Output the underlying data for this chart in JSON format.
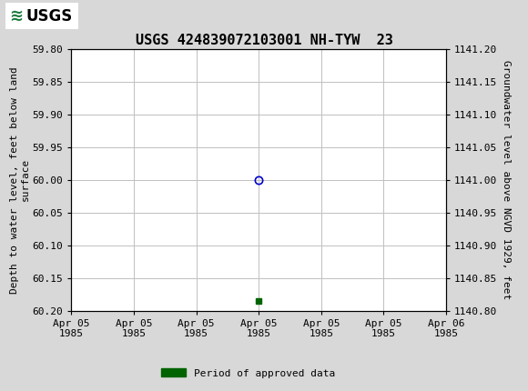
{
  "title": "USGS 424839072103001 NH-TYW  23",
  "left_ylabel": "Depth to water level, feet below land\nsurface",
  "right_ylabel": "Groundwater level above NGVD 1929, feet",
  "ylim_left_top": 59.8,
  "ylim_left_bottom": 60.2,
  "ylim_right_top": 1141.2,
  "ylim_right_bottom": 1140.8,
  "yticks_left": [
    59.8,
    59.85,
    59.9,
    59.95,
    60.0,
    60.05,
    60.1,
    60.15,
    60.2
  ],
  "yticks_right": [
    1141.2,
    1141.15,
    1141.1,
    1141.05,
    1141.0,
    1140.95,
    1140.9,
    1140.85,
    1140.8
  ],
  "data_point_x_h": 12.0,
  "data_point_y": 60.0,
  "approved_x_h": 12.0,
  "approved_y": 60.185,
  "data_point_color": "#0000cc",
  "approved_color": "#006400",
  "header_color": "#1a7a3c",
  "background_color": "#d8d8d8",
  "plot_background": "#ffffff",
  "grid_color": "#c0c0c0",
  "tick_fontsize": 8,
  "axis_fontsize": 8,
  "title_fontsize": 11,
  "legend_label": "Period of approved data",
  "xtick_positions": [
    0,
    4,
    8,
    12,
    16,
    20,
    24
  ],
  "xtick_labels": [
    "Apr 05\n1985",
    "Apr 05\n1985",
    "Apr 05\n1985",
    "Apr 05\n1985",
    "Apr 05\n1985",
    "Apr 05\n1985",
    "Apr 06\n1985"
  ]
}
